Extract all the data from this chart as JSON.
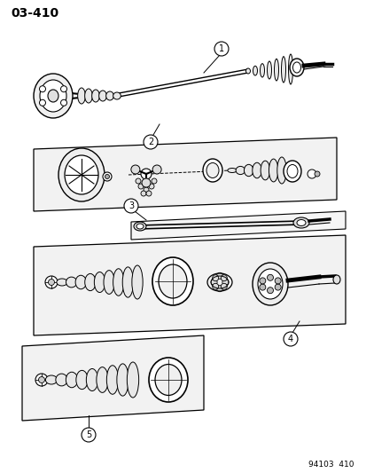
{
  "page_id": "03-410",
  "footer_text": "94103  410",
  "background_color": "#ffffff",
  "line_color": "#000000",
  "figsize": [
    4.14,
    5.33
  ],
  "dpi": 100
}
